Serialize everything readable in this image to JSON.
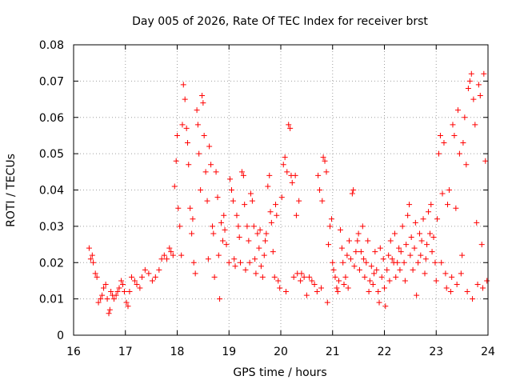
{
  "chart_data": {
    "type": "scatter",
    "title": "Day 005 of 2026, Rate Of TEC Index for receiver brst",
    "xlabel": "GPS time / hours",
    "ylabel": "ROTI / TECUs",
    "xlim": [
      16,
      24
    ],
    "ylim": [
      0,
      0.08
    ],
    "x_ticks": [
      "16",
      "17",
      "18",
      "19",
      "20",
      "21",
      "22",
      "23",
      "24"
    ],
    "y_ticks": [
      "0",
      "0.01",
      "0.02",
      "0.03",
      "0.04",
      "0.05",
      "0.06",
      "0.07",
      "0.08"
    ],
    "grid": true,
    "marker": "+",
    "marker_color": "#ff0000",
    "series": [
      {
        "name": "ROTI",
        "points": [
          [
            16.3,
            0.024
          ],
          [
            16.33,
            0.021
          ],
          [
            16.36,
            0.022
          ],
          [
            16.38,
            0.02
          ],
          [
            16.42,
            0.017
          ],
          [
            16.45,
            0.016
          ],
          [
            16.48,
            0.009
          ],
          [
            16.52,
            0.01
          ],
          [
            16.55,
            0.011
          ],
          [
            16.58,
            0.013
          ],
          [
            16.62,
            0.014
          ],
          [
            16.65,
            0.01
          ],
          [
            16.68,
            0.006
          ],
          [
            16.7,
            0.007
          ],
          [
            16.72,
            0.012
          ],
          [
            16.75,
            0.011
          ],
          [
            16.78,
            0.01
          ],
          [
            16.82,
            0.011
          ],
          [
            16.85,
            0.012
          ],
          [
            16.88,
            0.013
          ],
          [
            16.92,
            0.015
          ],
          [
            16.95,
            0.014
          ],
          [
            16.98,
            0.012
          ],
          [
            17.02,
            0.009
          ],
          [
            17.05,
            0.008
          ],
          [
            17.08,
            0.012
          ],
          [
            17.12,
            0.016
          ],
          [
            17.18,
            0.015
          ],
          [
            17.22,
            0.014
          ],
          [
            17.28,
            0.013
          ],
          [
            17.32,
            0.016
          ],
          [
            17.38,
            0.018
          ],
          [
            17.45,
            0.017
          ],
          [
            17.52,
            0.015
          ],
          [
            17.58,
            0.016
          ],
          [
            17.65,
            0.018
          ],
          [
            17.7,
            0.021
          ],
          [
            17.75,
            0.022
          ],
          [
            17.8,
            0.021
          ],
          [
            17.85,
            0.024
          ],
          [
            17.88,
            0.023
          ],
          [
            17.92,
            0.022
          ],
          [
            17.95,
            0.041
          ],
          [
            17.98,
            0.048
          ],
          [
            18.0,
            0.055
          ],
          [
            18.02,
            0.035
          ],
          [
            18.05,
            0.03
          ],
          [
            18.08,
            0.022
          ],
          [
            18.1,
            0.058
          ],
          [
            18.12,
            0.069
          ],
          [
            18.15,
            0.065
          ],
          [
            18.18,
            0.057
          ],
          [
            18.2,
            0.053
          ],
          [
            18.22,
            0.047
          ],
          [
            18.25,
            0.035
          ],
          [
            18.28,
            0.028
          ],
          [
            18.3,
            0.032
          ],
          [
            18.32,
            0.02
          ],
          [
            18.35,
            0.017
          ],
          [
            18.38,
            0.062
          ],
          [
            18.4,
            0.058
          ],
          [
            18.42,
            0.05
          ],
          [
            18.45,
            0.04
          ],
          [
            18.48,
            0.066
          ],
          [
            18.5,
            0.064
          ],
          [
            18.52,
            0.055
          ],
          [
            18.55,
            0.045
          ],
          [
            18.58,
            0.037
          ],
          [
            18.6,
            0.021
          ],
          [
            18.62,
            0.052
          ],
          [
            18.65,
            0.047
          ],
          [
            18.68,
            0.03
          ],
          [
            18.7,
            0.028
          ],
          [
            18.72,
            0.016
          ],
          [
            18.75,
            0.045
          ],
          [
            18.78,
            0.038
          ],
          [
            18.8,
            0.022
          ],
          [
            18.82,
            0.01
          ],
          [
            18.85,
            0.031
          ],
          [
            18.88,
            0.026
          ],
          [
            18.9,
            0.033
          ],
          [
            18.92,
            0.029
          ],
          [
            18.95,
            0.025
          ],
          [
            19.0,
            0.02
          ],
          [
            19.02,
            0.043
          ],
          [
            19.05,
            0.04
          ],
          [
            19.08,
            0.037
          ],
          [
            19.1,
            0.021
          ],
          [
            19.12,
            0.019
          ],
          [
            19.15,
            0.033
          ],
          [
            19.18,
            0.03
          ],
          [
            19.2,
            0.027
          ],
          [
            19.22,
            0.02
          ],
          [
            19.25,
            0.045
          ],
          [
            19.28,
            0.044
          ],
          [
            19.3,
            0.036
          ],
          [
            19.32,
            0.018
          ],
          [
            19.35,
            0.03
          ],
          [
            19.38,
            0.026
          ],
          [
            19.4,
            0.02
          ],
          [
            19.42,
            0.039
          ],
          [
            19.45,
            0.037
          ],
          [
            19.48,
            0.03
          ],
          [
            19.5,
            0.021
          ],
          [
            19.52,
            0.017
          ],
          [
            19.55,
            0.028
          ],
          [
            19.58,
            0.024
          ],
          [
            19.6,
            0.029
          ],
          [
            19.62,
            0.019
          ],
          [
            19.65,
            0.016
          ],
          [
            19.68,
            0.022
          ],
          [
            19.7,
            0.026
          ],
          [
            19.72,
            0.028
          ],
          [
            19.75,
            0.041
          ],
          [
            19.78,
            0.044
          ],
          [
            19.8,
            0.034
          ],
          [
            19.82,
            0.031
          ],
          [
            19.85,
            0.023
          ],
          [
            19.88,
            0.016
          ],
          [
            19.9,
            0.036
          ],
          [
            19.92,
            0.033
          ],
          [
            19.95,
            0.015
          ],
          [
            19.98,
            0.013
          ],
          [
            20.02,
            0.038
          ],
          [
            20.05,
            0.047
          ],
          [
            20.08,
            0.049
          ],
          [
            20.1,
            0.012
          ],
          [
            20.12,
            0.045
          ],
          [
            20.15,
            0.058
          ],
          [
            20.18,
            0.057
          ],
          [
            20.2,
            0.044
          ],
          [
            20.22,
            0.042
          ],
          [
            20.25,
            0.016
          ],
          [
            20.28,
            0.044
          ],
          [
            20.3,
            0.033
          ],
          [
            20.32,
            0.017
          ],
          [
            20.35,
            0.037
          ],
          [
            20.38,
            0.015
          ],
          [
            20.4,
            0.017
          ],
          [
            20.45,
            0.016
          ],
          [
            20.5,
            0.011
          ],
          [
            20.55,
            0.016
          ],
          [
            20.6,
            0.015
          ],
          [
            20.65,
            0.014
          ],
          [
            20.7,
            0.012
          ],
          [
            20.72,
            0.044
          ],
          [
            20.75,
            0.04
          ],
          [
            20.78,
            0.013
          ],
          [
            20.8,
            0.037
          ],
          [
            20.82,
            0.049
          ],
          [
            20.85,
            0.048
          ],
          [
            20.88,
            0.045
          ],
          [
            20.9,
            0.009
          ],
          [
            20.92,
            0.025
          ],
          [
            20.95,
            0.03
          ],
          [
            20.98,
            0.032
          ],
          [
            21.0,
            0.02
          ],
          [
            21.02,
            0.018
          ],
          [
            21.05,
            0.016
          ],
          [
            21.08,
            0.013
          ],
          [
            21.1,
            0.012
          ],
          [
            21.12,
            0.015
          ],
          [
            21.15,
            0.029
          ],
          [
            21.18,
            0.024
          ],
          [
            21.2,
            0.02
          ],
          [
            21.22,
            0.014
          ],
          [
            21.25,
            0.016
          ],
          [
            21.28,
            0.022
          ],
          [
            21.3,
            0.013
          ],
          [
            21.32,
            0.026
          ],
          [
            21.35,
            0.021
          ],
          [
            21.38,
            0.039
          ],
          [
            21.4,
            0.04
          ],
          [
            21.42,
            0.019
          ],
          [
            21.45,
            0.023
          ],
          [
            21.48,
            0.026
          ],
          [
            21.5,
            0.028
          ],
          [
            21.52,
            0.018
          ],
          [
            21.55,
            0.023
          ],
          [
            21.58,
            0.03
          ],
          [
            21.6,
            0.021
          ],
          [
            21.62,
            0.016
          ],
          [
            21.65,
            0.02
          ],
          [
            21.68,
            0.026
          ],
          [
            21.7,
            0.012
          ],
          [
            21.72,
            0.015
          ],
          [
            21.75,
            0.019
          ],
          [
            21.78,
            0.014
          ],
          [
            21.8,
            0.017
          ],
          [
            21.82,
            0.023
          ],
          [
            21.85,
            0.018
          ],
          [
            21.88,
            0.012
          ],
          [
            21.9,
            0.009
          ],
          [
            21.92,
            0.024
          ],
          [
            21.95,
            0.016
          ],
          [
            21.98,
            0.021
          ],
          [
            22.0,
            0.013
          ],
          [
            22.02,
            0.008
          ],
          [
            22.05,
            0.018
          ],
          [
            22.08,
            0.022
          ],
          [
            22.1,
            0.015
          ],
          [
            22.12,
            0.026
          ],
          [
            22.15,
            0.021
          ],
          [
            22.18,
            0.02
          ],
          [
            22.2,
            0.028
          ],
          [
            22.22,
            0.016
          ],
          [
            22.25,
            0.02
          ],
          [
            22.28,
            0.024
          ],
          [
            22.3,
            0.018
          ],
          [
            22.32,
            0.023
          ],
          [
            22.35,
            0.03
          ],
          [
            22.38,
            0.02
          ],
          [
            22.4,
            0.015
          ],
          [
            22.42,
            0.025
          ],
          [
            22.45,
            0.033
          ],
          [
            22.48,
            0.036
          ],
          [
            22.5,
            0.022
          ],
          [
            22.52,
            0.027
          ],
          [
            22.55,
            0.018
          ],
          [
            22.58,
            0.024
          ],
          [
            22.6,
            0.031
          ],
          [
            22.62,
            0.011
          ],
          [
            22.65,
            0.02
          ],
          [
            22.68,
            0.028
          ],
          [
            22.7,
            0.022
          ],
          [
            22.72,
            0.026
          ],
          [
            22.75,
            0.032
          ],
          [
            22.78,
            0.017
          ],
          [
            22.8,
            0.021
          ],
          [
            22.82,
            0.025
          ],
          [
            22.85,
            0.034
          ],
          [
            22.88,
            0.028
          ],
          [
            22.9,
            0.036
          ],
          [
            22.92,
            0.023
          ],
          [
            22.95,
            0.027
          ],
          [
            22.98,
            0.02
          ],
          [
            23.0,
            0.015
          ],
          [
            23.02,
            0.032
          ],
          [
            23.05,
            0.05
          ],
          [
            23.08,
            0.055
          ],
          [
            23.1,
            0.02
          ],
          [
            23.12,
            0.039
          ],
          [
            23.15,
            0.053
          ],
          [
            23.18,
            0.017
          ],
          [
            23.2,
            0.013
          ],
          [
            23.22,
            0.036
          ],
          [
            23.25,
            0.04
          ],
          [
            23.28,
            0.012
          ],
          [
            23.3,
            0.016
          ],
          [
            23.32,
            0.058
          ],
          [
            23.35,
            0.055
          ],
          [
            23.38,
            0.035
          ],
          [
            23.4,
            0.014
          ],
          [
            23.42,
            0.062
          ],
          [
            23.45,
            0.05
          ],
          [
            23.48,
            0.017
          ],
          [
            23.5,
            0.022
          ],
          [
            23.52,
            0.053
          ],
          [
            23.55,
            0.06
          ],
          [
            23.58,
            0.047
          ],
          [
            23.6,
            0.012
          ],
          [
            23.62,
            0.068
          ],
          [
            23.65,
            0.07
          ],
          [
            23.68,
            0.072
          ],
          [
            23.7,
            0.01
          ],
          [
            23.72,
            0.065
          ],
          [
            23.75,
            0.058
          ],
          [
            23.78,
            0.031
          ],
          [
            23.8,
            0.014
          ],
          [
            23.82,
            0.069
          ],
          [
            23.85,
            0.066
          ],
          [
            23.88,
            0.025
          ],
          [
            23.9,
            0.013
          ],
          [
            23.92,
            0.072
          ],
          [
            23.95,
            0.048
          ],
          [
            23.98,
            0.015
          ]
        ]
      }
    ]
  }
}
